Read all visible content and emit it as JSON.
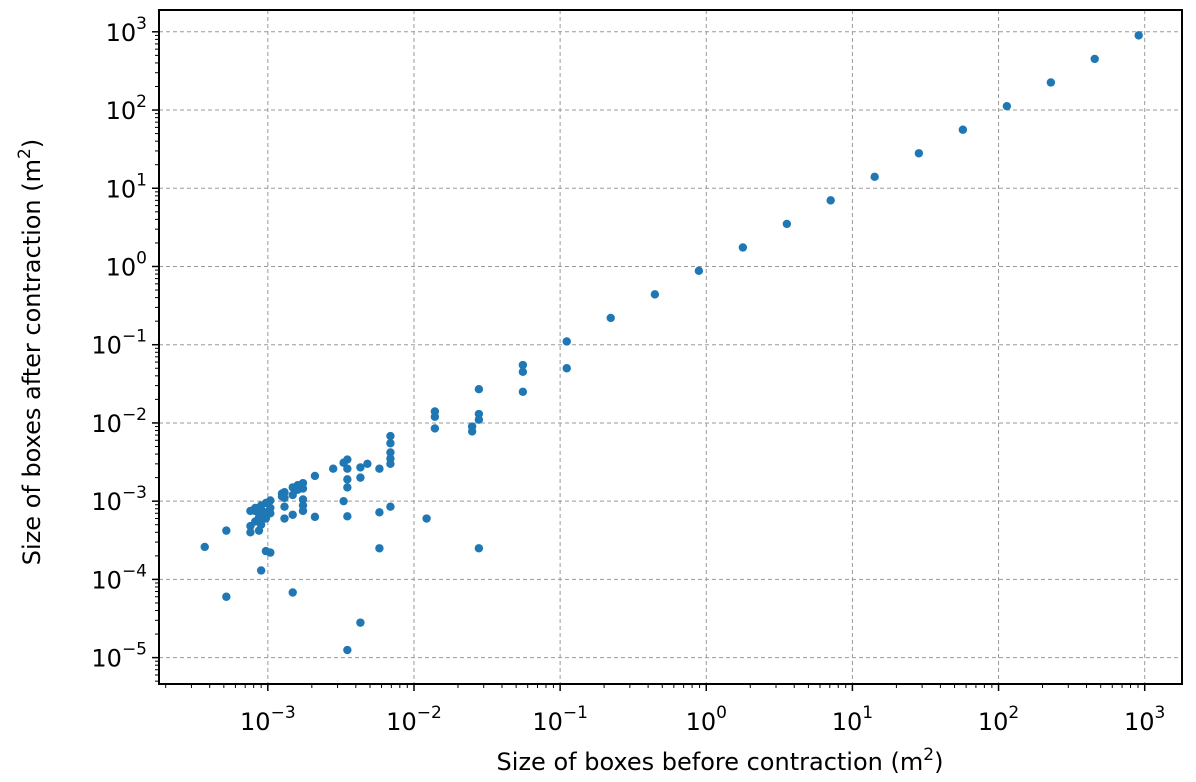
{
  "chart_data": {
    "type": "scatter",
    "xlabel": "Size of boxes before contraction (m",
    "xlabel_sup": "2",
    "xlabel_end": ")",
    "ylabel": "Size of boxes after contraction (m",
    "ylabel_sup": "2",
    "ylabel_end": ")",
    "x_scale": "log",
    "y_scale": "log",
    "xlim": [
      0.00018,
      1800
    ],
    "ylim": [
      4.6e-06,
      1900
    ],
    "grid": true,
    "legend": "none",
    "x_ticks": [
      {
        "base": "10",
        "exp": "−3",
        "value": 0.001
      },
      {
        "base": "10",
        "exp": "−2",
        "value": 0.01
      },
      {
        "base": "10",
        "exp": "−1",
        "value": 0.1
      },
      {
        "base": "10",
        "exp": "0",
        "value": 1
      },
      {
        "base": "10",
        "exp": "1",
        "value": 10
      },
      {
        "base": "10",
        "exp": "2",
        "value": 100
      },
      {
        "base": "10",
        "exp": "3",
        "value": 1000
      }
    ],
    "y_ticks": [
      {
        "base": "10",
        "exp": "−5",
        "value": 1e-05
      },
      {
        "base": "10",
        "exp": "−4",
        "value": 0.0001
      },
      {
        "base": "10",
        "exp": "−3",
        "value": 0.001
      },
      {
        "base": "10",
        "exp": "−2",
        "value": 0.01
      },
      {
        "base": "10",
        "exp": "−1",
        "value": 0.1
      },
      {
        "base": "10",
        "exp": "0",
        "value": 1
      },
      {
        "base": "10",
        "exp": "1",
        "value": 10
      },
      {
        "base": "10",
        "exp": "2",
        "value": 100
      },
      {
        "base": "10",
        "exp": "3",
        "value": 1000
      }
    ],
    "marker_color": "#1f77b4",
    "series": [
      {
        "points": [
          [
            910,
            900
          ],
          [
            455,
            450
          ],
          [
            228,
            225
          ],
          [
            114,
            112
          ],
          [
            57,
            56
          ],
          [
            28.5,
            28
          ],
          [
            14.2,
            14
          ],
          [
            7.1,
            7
          ],
          [
            3.56,
            3.5
          ],
          [
            1.78,
            1.75
          ],
          [
            0.89,
            0.88
          ],
          [
            0.445,
            0.44
          ],
          [
            0.222,
            0.22
          ],
          [
            0.111,
            0.11
          ],
          [
            0.111,
            0.05
          ],
          [
            0.0556,
            0.055
          ],
          [
            0.0556,
            0.045
          ],
          [
            0.0556,
            0.025
          ],
          [
            0.0278,
            0.027
          ],
          [
            0.0278,
            0.013
          ],
          [
            0.0278,
            0.011
          ],
          [
            0.0278,
            0.00025
          ],
          [
            0.0139,
            0.014
          ],
          [
            0.0139,
            0.012
          ],
          [
            0.0139,
            0.0085
          ],
          [
            0.025,
            0.009
          ],
          [
            0.025,
            0.0078
          ],
          [
            0.0122,
            0.0006
          ],
          [
            0.0069,
            0.0068
          ],
          [
            0.0069,
            0.0055
          ],
          [
            0.0069,
            0.0042
          ],
          [
            0.0069,
            0.0035
          ],
          [
            0.0069,
            0.003
          ],
          [
            0.0069,
            0.00085
          ],
          [
            0.0058,
            0.0026
          ],
          [
            0.0058,
            0.00072
          ],
          [
            0.0058,
            0.00025
          ],
          [
            0.0048,
            0.003
          ],
          [
            0.0043,
            0.0027
          ],
          [
            0.0043,
            0.002
          ],
          [
            0.0043,
            2.8e-05
          ],
          [
            0.0035,
            0.0034
          ],
          [
            0.0035,
            0.0026
          ],
          [
            0.0035,
            0.0019
          ],
          [
            0.0035,
            0.0015
          ],
          [
            0.0035,
            0.00064
          ],
          [
            0.0035,
            1.25e-05
          ],
          [
            0.0033,
            0.0031
          ],
          [
            0.0033,
            0.001
          ],
          [
            0.0028,
            0.0026
          ],
          [
            0.0021,
            0.0021
          ],
          [
            0.0021,
            0.00063
          ],
          [
            0.00174,
            0.0017
          ],
          [
            0.00174,
            0.00145
          ],
          [
            0.00174,
            0.00105
          ],
          [
            0.00174,
            0.00088
          ],
          [
            0.00174,
            0.00075
          ],
          [
            0.0016,
            0.0016
          ],
          [
            0.0016,
            0.0014
          ],
          [
            0.00148,
            0.0015
          ],
          [
            0.00148,
            0.0012
          ],
          [
            0.00148,
            0.00067
          ],
          [
            0.00148,
            6.8e-05
          ],
          [
            0.0013,
            0.0013
          ],
          [
            0.0013,
            0.0011
          ],
          [
            0.0013,
            0.00085
          ],
          [
            0.0013,
            0.0006
          ],
          [
            0.00125,
            0.00125
          ],
          [
            0.00125,
            0.00115
          ],
          [
            0.00104,
            0.00102
          ],
          [
            0.00104,
            0.00082
          ],
          [
            0.00104,
            0.0007
          ],
          [
            0.00104,
            0.00022
          ],
          [
            0.00097,
            0.00095
          ],
          [
            0.00097,
            0.00072
          ],
          [
            0.00097,
            0.0006
          ],
          [
            0.00097,
            0.00023
          ],
          [
            0.0009,
            0.00088
          ],
          [
            0.0009,
            0.00078
          ],
          [
            0.0009,
            0.00068
          ],
          [
            0.0009,
            0.00058
          ],
          [
            0.0009,
            0.0005
          ],
          [
            0.0009,
            0.00013
          ],
          [
            0.00087,
            0.00082
          ],
          [
            0.00087,
            0.00062
          ],
          [
            0.00087,
            0.00042
          ],
          [
            0.00082,
            0.00082
          ],
          [
            0.00082,
            0.00075
          ],
          [
            0.00082,
            0.00055
          ],
          [
            0.00076,
            0.00075
          ],
          [
            0.00076,
            0.00048
          ],
          [
            0.00076,
            0.0004
          ],
          [
            0.00052,
            0.00042
          ],
          [
            0.00052,
            6e-05
          ],
          [
            0.00037,
            0.00026
          ]
        ]
      }
    ]
  }
}
